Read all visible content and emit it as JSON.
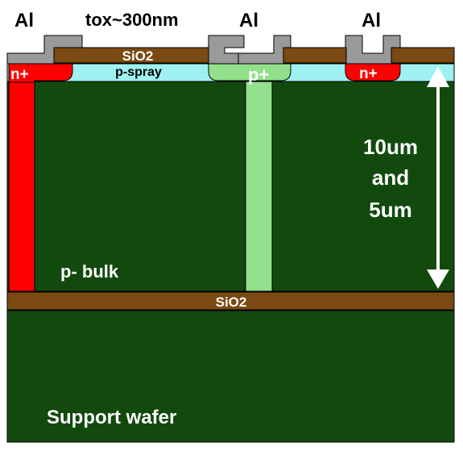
{
  "labels": {
    "al_left": "Al",
    "tox": "tox~300nm",
    "al_middle": "Al",
    "al_right": "Al",
    "sio2_top": "SiO2",
    "n_plus_left": "n+",
    "p_spray": "p-spray",
    "p_plus": "p+",
    "n_plus_right": "n+",
    "thickness_line1": "10um",
    "thickness_line2": "and",
    "thickness_line3": "5um",
    "p_bulk": "p- bulk",
    "sio2_buried": "SiO2",
    "support_wafer": "Support wafer"
  },
  "colors": {
    "bulk_green": "#124a0e",
    "sio2_brown": "#7a4a12",
    "al_gray": "#9a9a9a",
    "n_plus_red": "#ff0000",
    "p_spray_cyan": "#9ff0f0",
    "p_plus_light_green": "#92e08c",
    "arrow_white": "#ffffff",
    "text_black": "#000000",
    "text_white": "#ffffff"
  }
}
